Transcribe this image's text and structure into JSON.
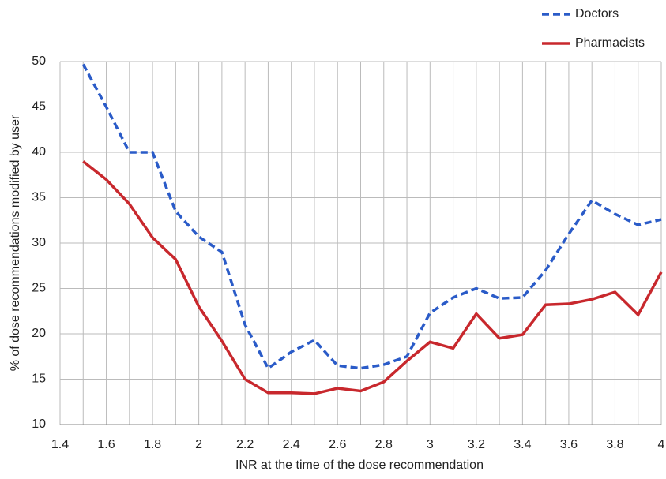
{
  "chart_data": {
    "type": "line",
    "x_label": "INR at the time of the dose recommendation",
    "y_label": "% of dose recommendations modified by user",
    "x": [
      1.5,
      1.6,
      1.7,
      1.8,
      1.9,
      2.0,
      2.1,
      2.2,
      2.3,
      2.4,
      2.5,
      2.6,
      2.7,
      2.8,
      2.9,
      3.0,
      3.1,
      3.2,
      3.3,
      3.4,
      3.5,
      3.6,
      3.7,
      3.8,
      3.9,
      4.0
    ],
    "series": [
      {
        "name": "Doctors",
        "color": "#2a5bc8",
        "dashed": true,
        "values": [
          49.7,
          45,
          40,
          40,
          33.5,
          30.7,
          29,
          21,
          16.2,
          18,
          19.3,
          16.5,
          16.2,
          16.6,
          17.5,
          22.3,
          24,
          25,
          23.9,
          24,
          27,
          31,
          34.7,
          33.2,
          32,
          32.6
        ]
      },
      {
        "name": "Pharmacists",
        "color": "#c8282d",
        "dashed": false,
        "values": [
          39,
          37,
          34.3,
          30.6,
          28.2,
          23,
          19.2,
          15,
          13.5,
          13.5,
          13.4,
          14,
          13.7,
          14.7,
          17,
          19.1,
          18.4,
          22.2,
          19.5,
          19.9,
          23.2,
          23.3,
          23.8,
          24.6,
          22.1,
          26.8
        ]
      }
    ],
    "xlim": [
      1.4,
      4
    ],
    "ylim": [
      10,
      50
    ],
    "xticks": [
      1.4,
      1.6,
      1.8,
      2,
      2.2,
      2.4,
      2.6,
      2.8,
      3,
      3.2,
      3.4,
      3.6,
      3.8,
      4
    ],
    "x_minor_grid": [
      1.5,
      1.7,
      1.9,
      2.1,
      2.3,
      2.5,
      2.7,
      2.9,
      3.1,
      3.3,
      3.5,
      3.7,
      3.9
    ],
    "yticks": [
      10,
      15,
      20,
      25,
      30,
      35,
      40,
      45,
      50
    ],
    "grid": true,
    "legend": "top-right"
  }
}
